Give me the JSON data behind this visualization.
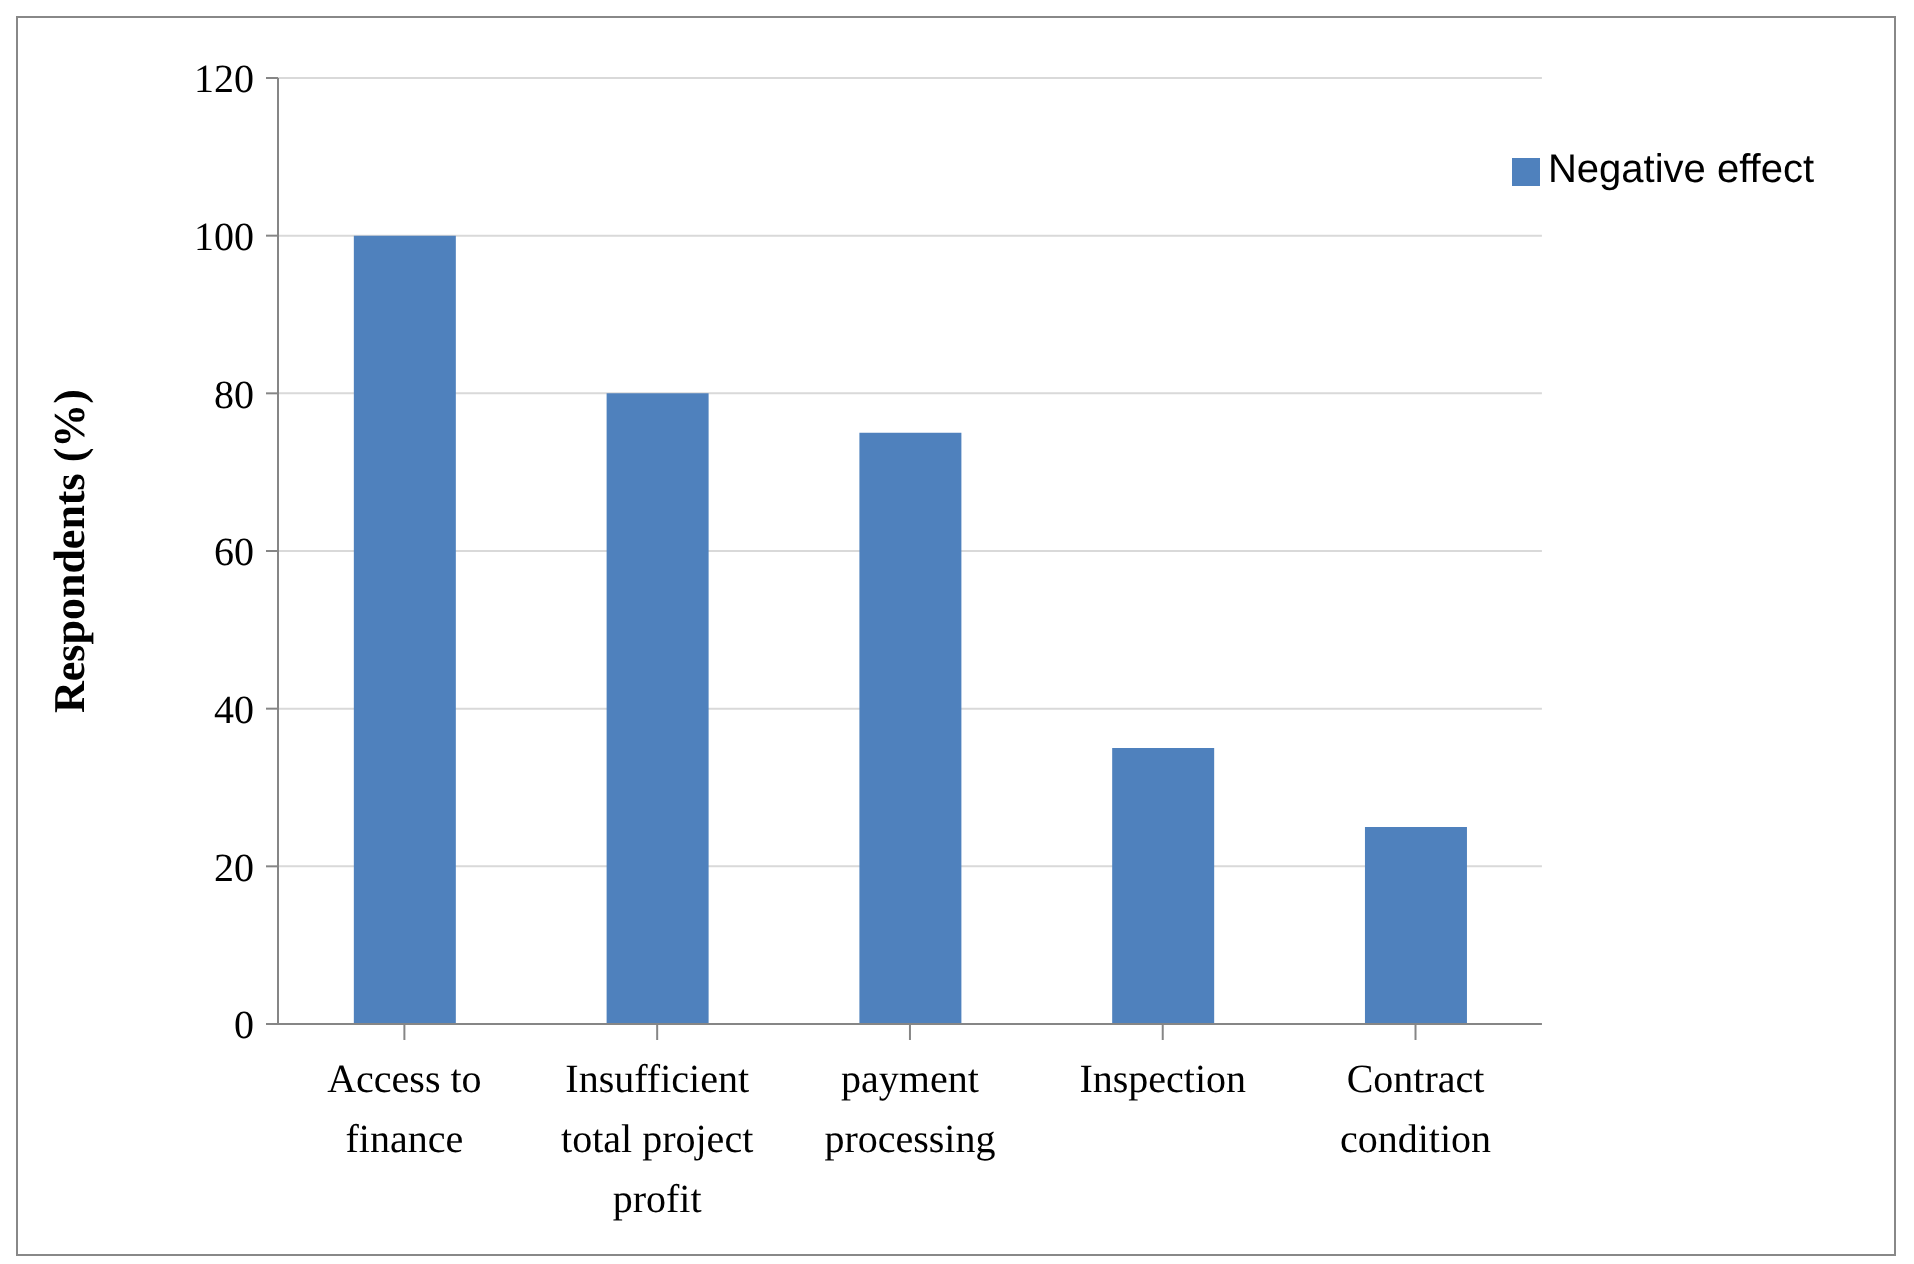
{
  "chart_data": {
    "type": "bar",
    "ylabel": "Respondents (%)",
    "categories": [
      "Access to finance",
      "Insufficient total project profit",
      "payment processing",
      "Inspection",
      "Contract condition"
    ],
    "series": [
      {
        "name": "Negative effect",
        "color": "#4f81bd",
        "values": [
          100,
          80,
          75,
          35,
          25
        ]
      }
    ],
    "ylim": [
      0,
      120
    ],
    "yticks": [
      0,
      20,
      40,
      60,
      80,
      100,
      120
    ],
    "grid": "y",
    "legend": "top right"
  }
}
